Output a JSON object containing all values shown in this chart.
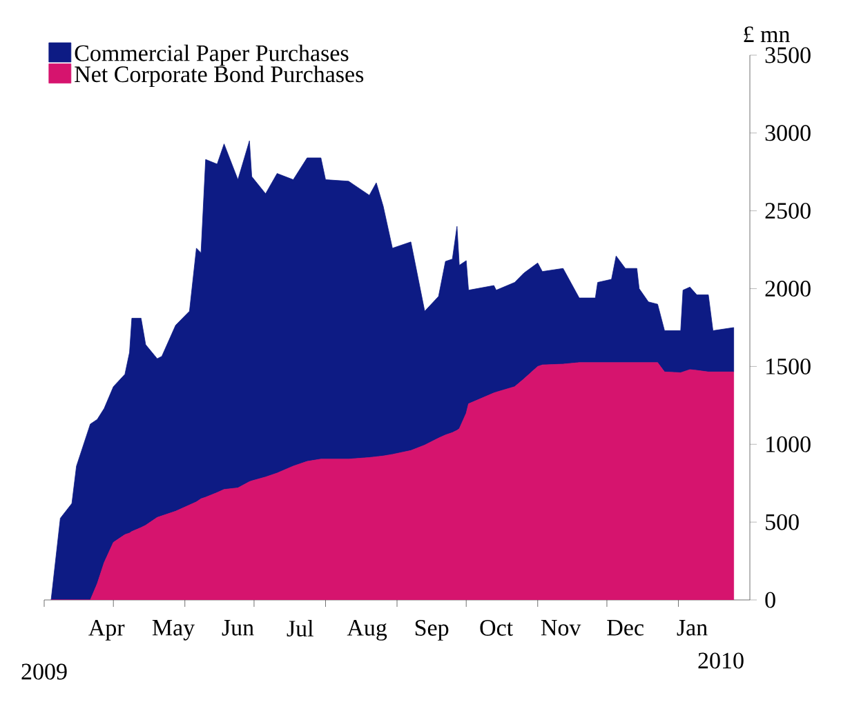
{
  "chart_data": {
    "type": "area",
    "stacked": true,
    "ylabel": "£ mn",
    "legend": "top left",
    "grid": false,
    "x": [
      "2009-04-04",
      "2009-04-08",
      "2009-04-13",
      "2009-04-15",
      "2009-04-21",
      "2009-04-24",
      "2009-04-27",
      "2009-05-01",
      "2009-05-06",
      "2009-05-08",
      "2009-05-09",
      "2009-05-13",
      "2009-05-15",
      "2009-05-20",
      "2009-05-22",
      "2009-05-28",
      "2009-06-03",
      "2009-06-06",
      "2009-06-08",
      "2009-06-10",
      "2009-06-15",
      "2009-06-18",
      "2009-06-24",
      "2009-06-29",
      "2009-06-30",
      "2009-07-06",
      "2009-07-11",
      "2009-07-18",
      "2009-07-24",
      "2009-07-30",
      "2009-08-01",
      "2009-08-11",
      "2009-08-20",
      "2009-08-23",
      "2009-08-26",
      "2009-08-30",
      "2009-09-07",
      "2009-09-13",
      "2009-09-19",
      "2009-09-22",
      "2009-09-25",
      "2009-09-27",
      "2009-09-28",
      "2009-10-01",
      "2009-10-02",
      "2009-10-13",
      "2009-10-14",
      "2009-10-22",
      "2009-10-26",
      "2009-11-01",
      "2009-11-03",
      "2009-11-12",
      "2009-11-19",
      "2009-11-26",
      "2009-11-27",
      "2009-12-03",
      "2009-12-05",
      "2009-12-09",
      "2009-12-14",
      "2009-12-15",
      "2009-12-19",
      "2009-12-23",
      "2009-12-26",
      "2010-01-02",
      "2010-01-03",
      "2010-01-06",
      "2010-01-09",
      "2010-01-14",
      "2010-01-16",
      "2010-01-25"
    ],
    "series": [
      {
        "name": "Net Corporate Bond Purchases",
        "color": "#d6146e",
        "values": [
          0,
          0,
          0,
          0,
          0,
          105,
          240,
          370,
          420,
          430,
          440,
          465,
          480,
          530,
          540,
          570,
          610,
          630,
          650,
          660,
          690,
          710,
          720,
          760,
          765,
          790,
          815,
          860,
          890,
          905,
          905,
          905,
          915,
          920,
          925,
          935,
          960,
          995,
          1040,
          1060,
          1075,
          1090,
          1100,
          1200,
          1260,
          1330,
          1335,
          1370,
          1420,
          1500,
          1510,
          1515,
          1525,
          1525,
          1525,
          1525,
          1525,
          1525,
          1525,
          1525,
          1525,
          1525,
          1465,
          1460,
          1465,
          1480,
          1475,
          1465,
          1465,
          1465
        ]
      },
      {
        "name": "Commercial Paper Purchases",
        "color": "#0d1b84",
        "values": [
          0,
          525,
          620,
          860,
          1130,
          1055,
          990,
          1000,
          1030,
          1160,
          1370,
          1345,
          1160,
          1020,
          1025,
          1195,
          1245,
          1630,
          1580,
          2170,
          2110,
          2220,
          1980,
          2190,
          1955,
          1820,
          1925,
          1840,
          1950,
          1935,
          1795,
          1785,
          1685,
          1760,
          1605,
          1325,
          1340,
          860,
          910,
          1115,
          1115,
          1310,
          1050,
          980,
          730,
          690,
          655,
          670,
          680,
          665,
          600,
          615,
          415,
          415,
          515,
          535,
          685,
          605,
          605,
          475,
          390,
          375,
          265,
          270,
          525,
          530,
          485,
          495,
          265,
          285
        ]
      }
    ],
    "xlim": [
      "2009-04-01",
      "2010-02-01"
    ],
    "xticks": [
      {
        "value": "2009-04-01",
        "label": null
      },
      {
        "value": "2009-05-01",
        "label": null
      },
      {
        "value": "2009-06-01",
        "label": null
      },
      {
        "value": "2009-07-01",
        "label": null
      },
      {
        "value": "2009-08-01",
        "label": null
      },
      {
        "value": "2009-09-01",
        "label": null
      },
      {
        "value": "2009-10-01",
        "label": null
      },
      {
        "value": "2009-11-01",
        "label": null
      },
      {
        "value": "2009-12-01",
        "label": null
      },
      {
        "value": "2010-01-01",
        "label": null
      },
      {
        "value": "2009-04-28",
        "label": "Apr"
      },
      {
        "value": "2009-05-27",
        "label": "May"
      },
      {
        "value": "2009-06-24",
        "label": "Jun"
      },
      {
        "value": "2009-07-21",
        "label": "Jul"
      },
      {
        "value": "2009-08-19",
        "label": "Aug"
      },
      {
        "value": "2009-09-16",
        "label": "Sep"
      },
      {
        "value": "2009-10-14",
        "label": "Oct"
      },
      {
        "value": "2009-11-11",
        "label": "Nov"
      },
      {
        "value": "2009-12-09",
        "label": "Dec"
      },
      {
        "value": "2010-01-07",
        "label": "Jan"
      }
    ],
    "ylim": [
      0,
      3500
    ],
    "yticks": [
      0,
      500,
      1000,
      1500,
      2000,
      2500,
      3000,
      3500
    ],
    "annotations": [
      "2009",
      "2010"
    ]
  }
}
